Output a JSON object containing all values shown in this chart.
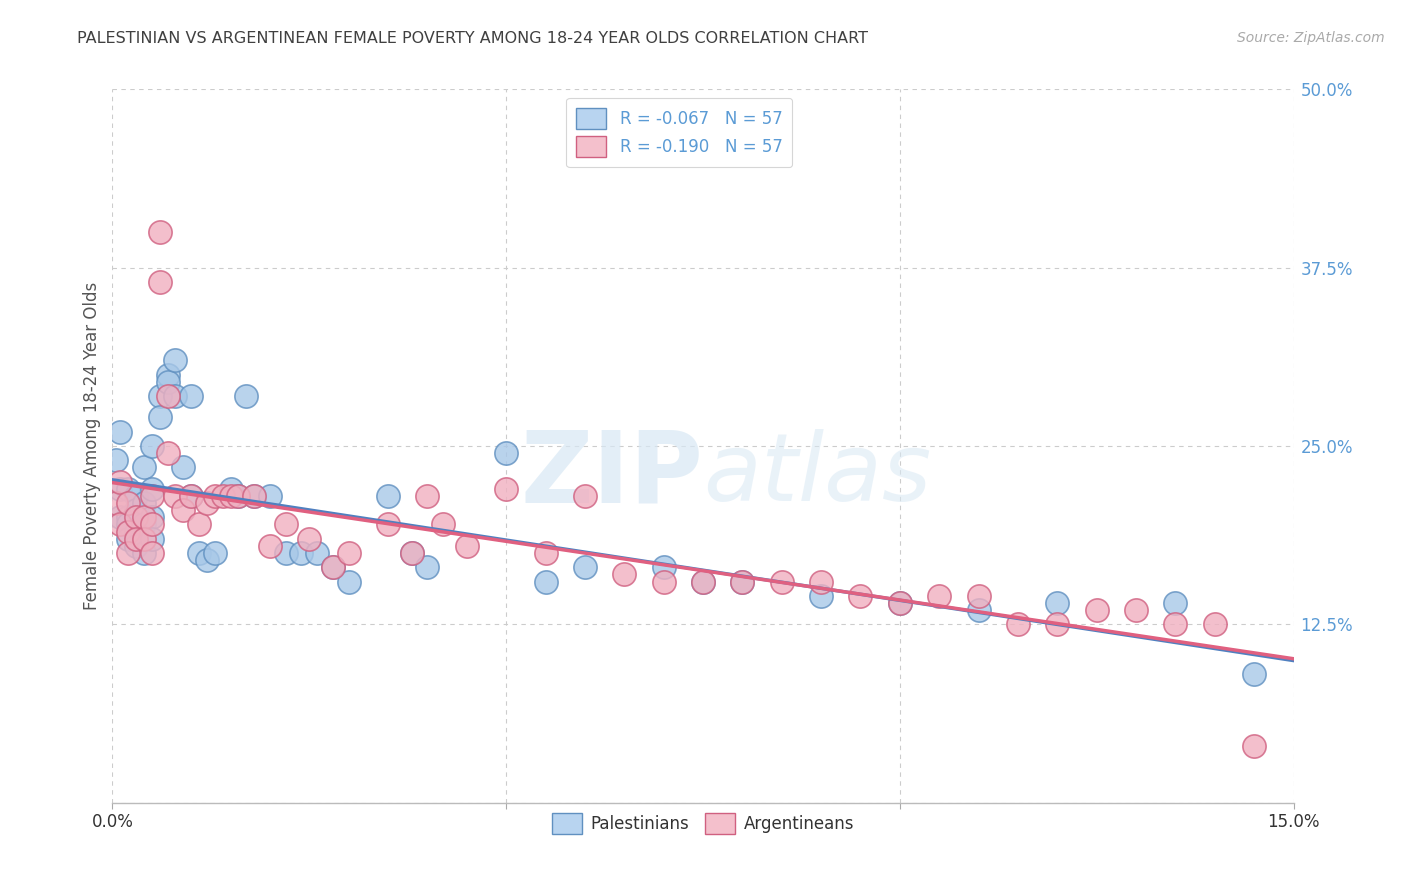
{
  "title": "PALESTINIAN VS ARGENTINEAN FEMALE POVERTY AMONG 18-24 YEAR OLDS CORRELATION CHART",
  "source": "Source: ZipAtlas.com",
  "ylabel": "Female Poverty Among 18-24 Year Olds",
  "xlim": [
    0.0,
    0.15
  ],
  "ylim": [
    0.0,
    0.5
  ],
  "xtick_vals": [
    0.0,
    0.05,
    0.1,
    0.15
  ],
  "xticklabels": [
    "0.0%",
    "",
    "",
    "15.0%"
  ],
  "ytick_values_right": [
    0.5,
    0.375,
    0.25,
    0.125,
    0.0
  ],
  "ytick_labels_right": [
    "50.0%",
    "37.5%",
    "25.0%",
    "12.5%",
    ""
  ],
  "palestinians_R": "-0.067",
  "palestinians_N": "57",
  "argentineans_R": "-0.190",
  "argentineans_N": "57",
  "blue_scatter": "#A8C8E8",
  "pink_scatter": "#F0B0C0",
  "blue_edge": "#6090C0",
  "pink_edge": "#D06080",
  "blue_line": "#5080C0",
  "pink_line": "#E06080",
  "legend_blue_fill": "#B8D4F0",
  "legend_pink_fill": "#F4C0CC",
  "grid_color": "#CCCCCC",
  "title_color": "#404040",
  "axis_label_color": "#555555",
  "right_tick_color": "#5B9BD5",
  "palestinians_x": [
    0.0005,
    0.001,
    0.001,
    0.001,
    0.002,
    0.002,
    0.002,
    0.002,
    0.003,
    0.003,
    0.003,
    0.003,
    0.004,
    0.004,
    0.004,
    0.004,
    0.005,
    0.005,
    0.005,
    0.005,
    0.006,
    0.006,
    0.007,
    0.007,
    0.008,
    0.008,
    0.009,
    0.01,
    0.01,
    0.011,
    0.012,
    0.013,
    0.015,
    0.016,
    0.017,
    0.018,
    0.02,
    0.022,
    0.024,
    0.026,
    0.028,
    0.03,
    0.035,
    0.038,
    0.04,
    0.05,
    0.055,
    0.06,
    0.07,
    0.075,
    0.08,
    0.09,
    0.1,
    0.11,
    0.12,
    0.135,
    0.145
  ],
  "palestinians_y": [
    0.24,
    0.26,
    0.22,
    0.2,
    0.22,
    0.2,
    0.195,
    0.185,
    0.215,
    0.205,
    0.19,
    0.18,
    0.235,
    0.21,
    0.195,
    0.175,
    0.25,
    0.22,
    0.2,
    0.185,
    0.285,
    0.27,
    0.3,
    0.295,
    0.31,
    0.285,
    0.235,
    0.285,
    0.215,
    0.175,
    0.17,
    0.175,
    0.22,
    0.215,
    0.285,
    0.215,
    0.215,
    0.175,
    0.175,
    0.175,
    0.165,
    0.155,
    0.215,
    0.175,
    0.165,
    0.245,
    0.155,
    0.165,
    0.165,
    0.155,
    0.155,
    0.145,
    0.14,
    0.135,
    0.14,
    0.14,
    0.09
  ],
  "argentineans_x": [
    0.0005,
    0.001,
    0.001,
    0.002,
    0.002,
    0.002,
    0.003,
    0.003,
    0.004,
    0.004,
    0.005,
    0.005,
    0.005,
    0.006,
    0.006,
    0.007,
    0.007,
    0.008,
    0.009,
    0.01,
    0.011,
    0.012,
    0.013,
    0.014,
    0.015,
    0.016,
    0.018,
    0.02,
    0.022,
    0.025,
    0.028,
    0.03,
    0.035,
    0.038,
    0.04,
    0.042,
    0.045,
    0.05,
    0.055,
    0.06,
    0.065,
    0.07,
    0.075,
    0.08,
    0.085,
    0.09,
    0.095,
    0.1,
    0.105,
    0.11,
    0.115,
    0.12,
    0.125,
    0.13,
    0.135,
    0.14,
    0.145
  ],
  "argentineans_y": [
    0.21,
    0.225,
    0.195,
    0.21,
    0.19,
    0.175,
    0.2,
    0.185,
    0.2,
    0.185,
    0.215,
    0.195,
    0.175,
    0.4,
    0.365,
    0.285,
    0.245,
    0.215,
    0.205,
    0.215,
    0.195,
    0.21,
    0.215,
    0.215,
    0.215,
    0.215,
    0.215,
    0.18,
    0.195,
    0.185,
    0.165,
    0.175,
    0.195,
    0.175,
    0.215,
    0.195,
    0.18,
    0.22,
    0.175,
    0.215,
    0.16,
    0.155,
    0.155,
    0.155,
    0.155,
    0.155,
    0.145,
    0.14,
    0.145,
    0.145,
    0.125,
    0.125,
    0.135,
    0.135,
    0.125,
    0.125,
    0.04
  ]
}
